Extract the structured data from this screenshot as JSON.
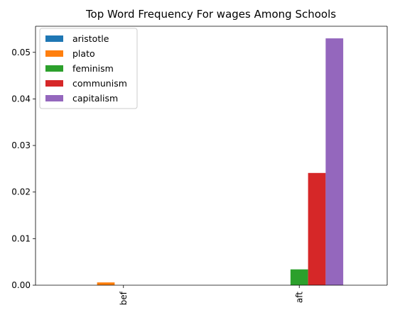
{
  "chart_data": {
    "type": "bar",
    "title": "Top Word Frequency For wages Among Schools",
    "xlabel": "",
    "ylabel": "",
    "categories": [
      "bef",
      "aft"
    ],
    "series": [
      {
        "name": "aristotle",
        "color": "#1f77b4",
        "values": [
          0.0,
          0.0
        ]
      },
      {
        "name": "plato",
        "color": "#ff7f0e",
        "values": [
          0.0006,
          0.0
        ]
      },
      {
        "name": "feminism",
        "color": "#2ca02c",
        "values": [
          0.0,
          0.0034
        ]
      },
      {
        "name": "communism",
        "color": "#d62728",
        "values": [
          0.0,
          0.0241
        ]
      },
      {
        "name": "capitalism",
        "color": "#9467bd",
        "values": [
          0.0,
          0.053
        ]
      }
    ],
    "ylim": [
      0,
      0.0556
    ],
    "yticks": [
      0.0,
      0.01,
      0.02,
      0.03,
      0.04,
      0.05
    ],
    "ytick_labels": [
      "0.00",
      "0.01",
      "0.02",
      "0.03",
      "0.04",
      "0.05"
    ],
    "legend_position": "upper-left",
    "grid": false
  }
}
